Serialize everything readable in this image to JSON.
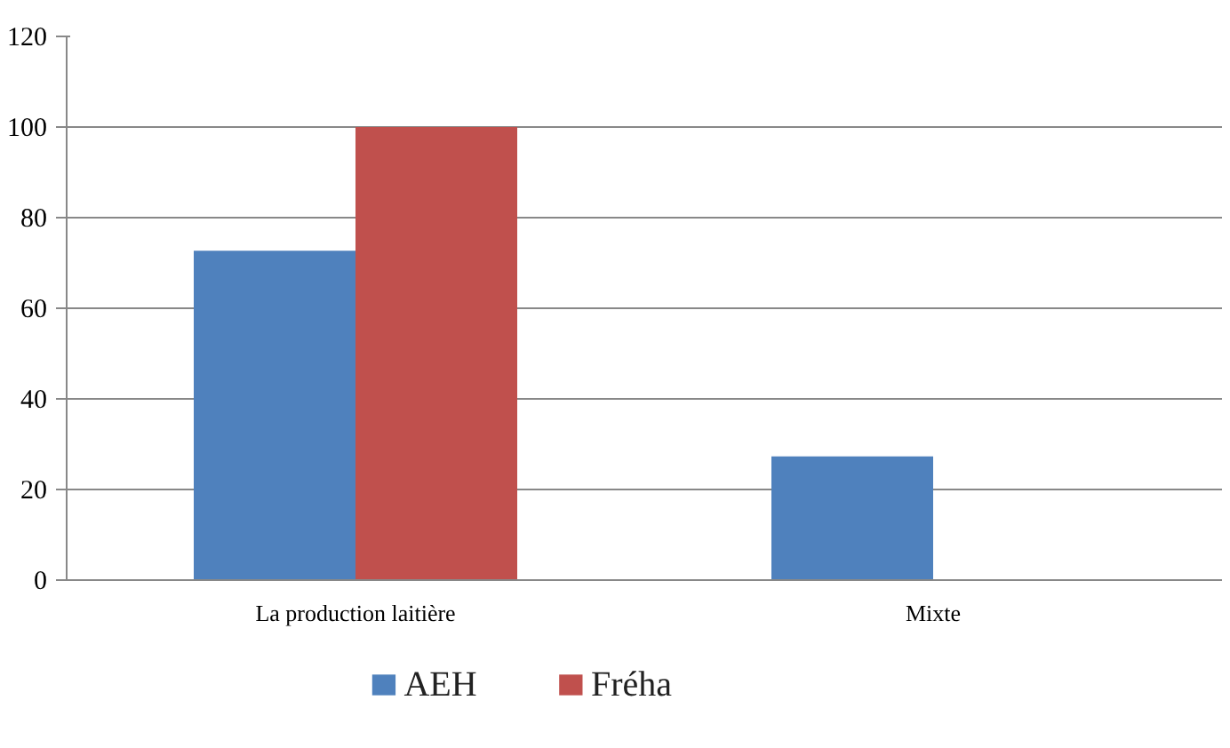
{
  "chart_data": {
    "type": "bar",
    "categories": [
      "La production laitière",
      "Mixte"
    ],
    "series": [
      {
        "name": "AEH",
        "color": "#4f81bd",
        "values": [
          72.7,
          27.3
        ]
      },
      {
        "name": "Fréha",
        "color": "#c0504d",
        "values": [
          100,
          0
        ]
      }
    ],
    "ylim": [
      0,
      120
    ],
    "yticks": [
      0,
      20,
      40,
      60,
      80,
      100,
      120
    ],
    "grid": "y",
    "legend": "bottom"
  }
}
